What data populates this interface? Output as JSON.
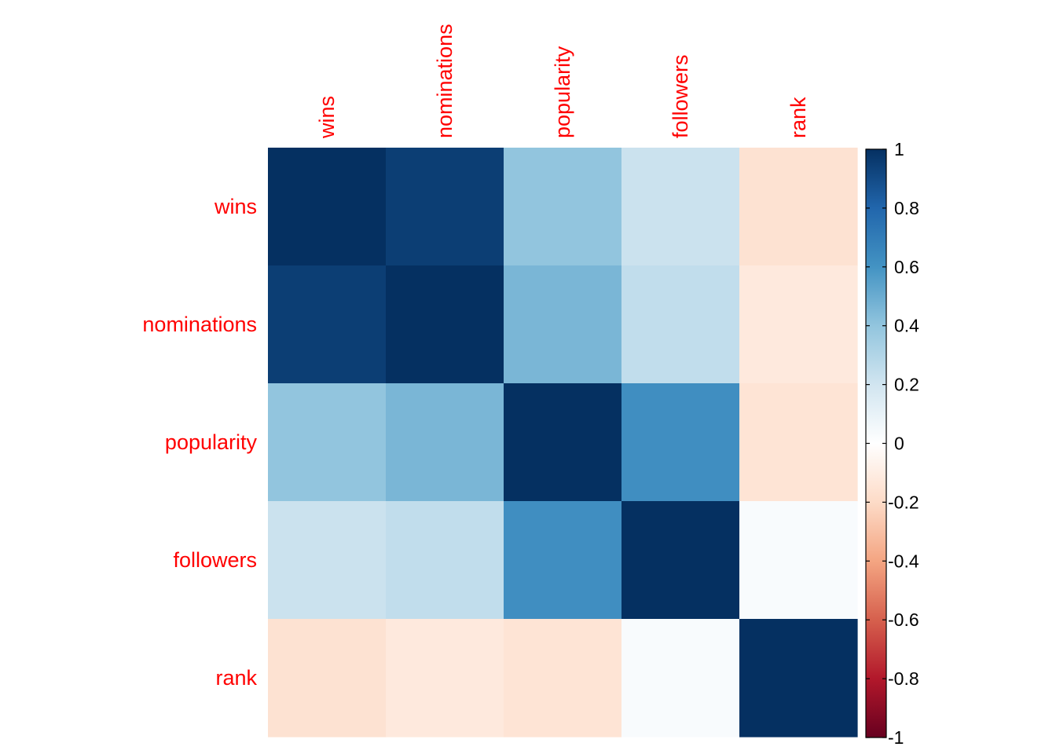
{
  "chart_data": {
    "type": "heatmap",
    "title": "",
    "rows": [
      "wins",
      "nominations",
      "popularity",
      "followers",
      "rank"
    ],
    "columns": [
      "wins",
      "nominations",
      "popularity",
      "followers",
      "rank"
    ],
    "values": [
      [
        1.0,
        0.95,
        0.4,
        0.22,
        -0.16
      ],
      [
        0.95,
        1.0,
        0.46,
        0.25,
        -0.12
      ],
      [
        0.4,
        0.46,
        1.0,
        0.62,
        -0.15
      ],
      [
        0.22,
        0.25,
        0.62,
        1.0,
        0.03
      ],
      [
        -0.16,
        -0.12,
        -0.15,
        0.03,
        1.0
      ]
    ],
    "color_scale": {
      "min": -1,
      "max": 1,
      "ticks": [
        "1",
        "0.8",
        "0.6",
        "0.4",
        "0.2",
        "0",
        "-0.2",
        "-0.4",
        "-0.6",
        "-0.8",
        "-1"
      ],
      "colors": [
        "#67001F",
        "#B2182B",
        "#D6604D",
        "#F4A582",
        "#FDDBC7",
        "#FFFFFF",
        "#D1E5F0",
        "#92C5DE",
        "#4393C3",
        "#2166AC",
        "#053061"
      ]
    },
    "label_color": "#FF0000",
    "grid": false,
    "legend_position": "right"
  }
}
